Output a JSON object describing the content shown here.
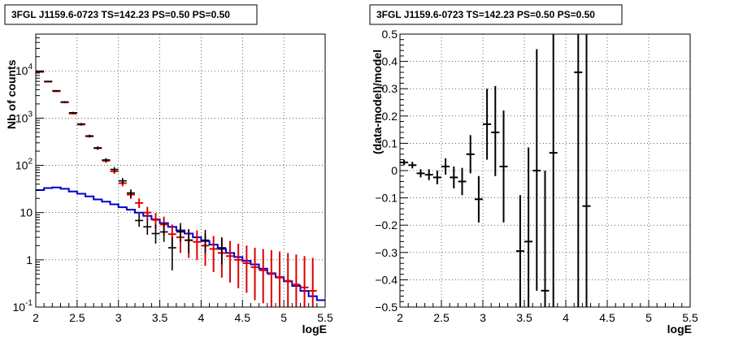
{
  "colors": {
    "data": "#000000",
    "model_points": "#dd0000",
    "source_curve": "#0000cc"
  },
  "chart_data": [
    {
      "type": "line",
      "title": "3FGL J1159.6-0723 TS=142.23 PS=0.50 PS=0.50",
      "xlabel": "logE",
      "ylabel": "Nb of counts",
      "xlim": [
        2,
        5.5
      ],
      "ylim": [
        0.1,
        60000
      ],
      "y_scale": "log",
      "grid": true,
      "x_tick_labels": [
        "2",
        "2.5",
        "3",
        "3.5",
        "4",
        "4.5",
        "5",
        "5.5"
      ],
      "y_tick_labels": [
        {
          "value": 0.1,
          "base": "10",
          "exp": "-1"
        },
        {
          "value": 1,
          "base": "1",
          "exp": ""
        },
        {
          "value": 10,
          "base": "10",
          "exp": ""
        },
        {
          "value": 100,
          "base": "10",
          "exp": "2"
        },
        {
          "value": 1000,
          "base": "10",
          "exp": "3"
        },
        {
          "value": 10000,
          "base": "10",
          "exp": "4"
        }
      ],
      "series": [
        {
          "role": "data",
          "style": "errorbar",
          "color": "#000000",
          "points": [
            {
              "x": 2.05,
              "y": 9700,
              "lo": 9500,
              "hi": 9900
            },
            {
              "x": 2.15,
              "y": 6000,
              "lo": 5850,
              "hi": 6150
            },
            {
              "x": 2.25,
              "y": 3800,
              "lo": 3680,
              "hi": 3920
            },
            {
              "x": 2.35,
              "y": 2200,
              "lo": 2110,
              "hi": 2290
            },
            {
              "x": 2.45,
              "y": 1300,
              "lo": 1240,
              "hi": 1360
            },
            {
              "x": 2.55,
              "y": 750,
              "lo": 710,
              "hi": 790
            },
            {
              "x": 2.65,
              "y": 420,
              "lo": 395,
              "hi": 445
            },
            {
              "x": 2.75,
              "y": 235,
              "lo": 218,
              "hi": 252
            },
            {
              "x": 2.85,
              "y": 130,
              "lo": 118,
              "hi": 142
            },
            {
              "x": 2.95,
              "y": 82,
              "lo": 72,
              "hi": 92
            },
            {
              "x": 3.05,
              "y": 47,
              "lo": 40,
              "hi": 54
            },
            {
              "x": 3.15,
              "y": 26,
              "lo": 21,
              "hi": 31
            },
            {
              "x": 3.25,
              "y": 6.8,
              "lo": 5,
              "hi": 9.5
            },
            {
              "x": 3.35,
              "y": 5,
              "lo": 3.4,
              "hi": 7.2
            },
            {
              "x": 3.45,
              "y": 3.6,
              "lo": 2.2,
              "hi": 5.6
            },
            {
              "x": 3.55,
              "y": 3.9,
              "lo": 2.4,
              "hi": 6
            },
            {
              "x": 3.65,
              "y": 1.8,
              "lo": 0.6,
              "hi": 3
            },
            {
              "x": 3.75,
              "y": 3.9,
              "lo": 2.4,
              "hi": 6
            },
            {
              "x": 3.85,
              "y": 2.6,
              "lo": 1.4,
              "hi": 4.3
            },
            {
              "x": 4.05,
              "y": 2.6,
              "lo": 1.4,
              "hi": 4.3
            },
            {
              "x": 4.25,
              "y": 1.8,
              "lo": 0.8,
              "hi": 3
            }
          ]
        },
        {
          "role": "model",
          "style": "errorbar",
          "color": "#dd0000",
          "points": [
            {
              "x": 2.05,
              "y": 9500,
              "lo": 9300,
              "hi": 9700
            },
            {
              "x": 2.15,
              "y": 5900,
              "lo": 5750,
              "hi": 6050
            },
            {
              "x": 2.25,
              "y": 3700,
              "lo": 3580,
              "hi": 3820
            },
            {
              "x": 2.35,
              "y": 2150,
              "lo": 2060,
              "hi": 2240
            },
            {
              "x": 2.45,
              "y": 1250,
              "lo": 1190,
              "hi": 1310
            },
            {
              "x": 2.55,
              "y": 730,
              "lo": 690,
              "hi": 770
            },
            {
              "x": 2.65,
              "y": 410,
              "lo": 385,
              "hi": 435
            },
            {
              "x": 2.75,
              "y": 230,
              "lo": 213,
              "hi": 247
            },
            {
              "x": 2.85,
              "y": 125,
              "lo": 113,
              "hi": 137
            },
            {
              "x": 2.95,
              "y": 75,
              "lo": 66,
              "hi": 84
            },
            {
              "x": 3.05,
              "y": 42,
              "lo": 36,
              "hi": 48
            },
            {
              "x": 3.15,
              "y": 24,
              "lo": 19.5,
              "hi": 28.5
            },
            {
              "x": 3.25,
              "y": 16,
              "lo": 12.5,
              "hi": 20
            },
            {
              "x": 3.35,
              "y": 10,
              "lo": 7.2,
              "hi": 13.2
            },
            {
              "x": 3.45,
              "y": 7,
              "lo": 4.6,
              "hi": 9.8
            },
            {
              "x": 3.55,
              "y": 5.6,
              "lo": 3.4,
              "hi": 8.2
            },
            {
              "x": 3.65,
              "y": 3.5,
              "lo": 1.8,
              "hi": 5.6
            },
            {
              "x": 3.75,
              "y": 3,
              "lo": 1.4,
              "hi": 5
            },
            {
              "x": 3.85,
              "y": 2.6,
              "lo": 1.1,
              "hi": 4.5
            },
            {
              "x": 3.95,
              "y": 2.4,
              "lo": 1,
              "hi": 4.2
            },
            {
              "x": 4.05,
              "y": 2,
              "lo": 0.75,
              "hi": 3.6
            },
            {
              "x": 4.15,
              "y": 1.7,
              "lo": 0.55,
              "hi": 3.2
            },
            {
              "x": 4.25,
              "y": 1.4,
              "lo": 0.42,
              "hi": 2.8
            },
            {
              "x": 4.35,
              "y": 1.2,
              "lo": 0.33,
              "hi": 2.5
            },
            {
              "x": 4.45,
              "y": 1,
              "lo": 0.25,
              "hi": 2.2
            },
            {
              "x": 4.55,
              "y": 0.85,
              "lo": 0.2,
              "hi": 2
            },
            {
              "x": 4.65,
              "y": 0.7,
              "lo": 0.14,
              "hi": 1.8
            },
            {
              "x": 4.75,
              "y": 0.6,
              "lo": 0.12,
              "hi": 1.7
            },
            {
              "x": 4.85,
              "y": 0.5,
              "lo": 0.1,
              "hi": 1.6
            },
            {
              "x": 4.95,
              "y": 0.42,
              "lo": 0.1,
              "hi": 1.5
            },
            {
              "x": 5.05,
              "y": 0.36,
              "lo": 0.1,
              "hi": 1.4
            },
            {
              "x": 5.15,
              "y": 0.3,
              "lo": 0.1,
              "hi": 1.3
            },
            {
              "x": 5.25,
              "y": 0.26,
              "lo": 0.1,
              "hi": 1.2
            },
            {
              "x": 5.35,
              "y": 0.22,
              "lo": 0.1,
              "hi": 1.1
            }
          ]
        },
        {
          "role": "source",
          "style": "step",
          "color": "#0000cc",
          "bin_width": 0.1,
          "x": [
            2.0,
            2.1,
            2.2,
            2.3,
            2.4,
            2.5,
            2.6,
            2.7,
            2.8,
            2.9,
            3.0,
            3.1,
            3.2,
            3.3,
            3.4,
            3.5,
            3.6,
            3.7,
            3.8,
            3.9,
            4.0,
            4.1,
            4.2,
            4.3,
            4.4,
            4.5,
            4.6,
            4.7,
            4.8,
            4.9,
            5.0,
            5.1,
            5.2,
            5.3,
            5.4
          ],
          "values": [
            30,
            33,
            34,
            32,
            28,
            25,
            22,
            19,
            17,
            15,
            13,
            11.5,
            10,
            8.5,
            7.2,
            6,
            5,
            4.2,
            3.6,
            3,
            2.5,
            2.1,
            1.7,
            1.4,
            1.15,
            0.95,
            0.8,
            0.65,
            0.52,
            0.43,
            0.35,
            0.28,
            0.22,
            0.17,
            0.14
          ]
        }
      ]
    },
    {
      "type": "scatter",
      "title": "3FGL J1159.6-0723 TS=142.23 PS=0.50 PS=0.50",
      "xlabel": "logE",
      "ylabel": "(data-model)/model",
      "xlim": [
        2,
        5.5
      ],
      "ylim": [
        -0.5,
        0.5
      ],
      "grid": true,
      "x_tick_labels": [
        "2",
        "2.5",
        "3",
        "3.5",
        "4",
        "4.5",
        "5",
        "5.5"
      ],
      "y_tick_labels": [
        "−0.5",
        "−0.4",
        "−0.3",
        "−0.2",
        "−0.1",
        "0",
        "0.1",
        "0.2",
        "0.3",
        "0.4",
        "0.5"
      ],
      "y_tick_values": [
        -0.5,
        -0.4,
        -0.3,
        -0.2,
        -0.1,
        0,
        0.1,
        0.2,
        0.3,
        0.4,
        0.5
      ],
      "series": [
        {
          "role": "residuals",
          "style": "errorbar",
          "color": "#000000",
          "points": [
            {
              "x": 2.05,
              "y": 0.03,
              "lo": 0.02,
              "hi": 0.04
            },
            {
              "x": 2.15,
              "y": 0.02,
              "lo": 0.008,
              "hi": 0.032
            },
            {
              "x": 2.25,
              "y": -0.01,
              "lo": -0.025,
              "hi": 0.005
            },
            {
              "x": 2.35,
              "y": -0.015,
              "lo": -0.035,
              "hi": 0.005
            },
            {
              "x": 2.45,
              "y": -0.025,
              "lo": -0.05,
              "hi": 0
            },
            {
              "x": 2.55,
              "y": 0.015,
              "lo": -0.015,
              "hi": 0.045
            },
            {
              "x": 2.65,
              "y": -0.025,
              "lo": -0.065,
              "hi": 0.015
            },
            {
              "x": 2.75,
              "y": -0.04,
              "lo": -0.09,
              "hi": 0.01
            },
            {
              "x": 2.85,
              "y": 0.06,
              "lo": -0.01,
              "hi": 0.13
            },
            {
              "x": 2.95,
              "y": -0.105,
              "lo": -0.19,
              "hi": -0.02
            },
            {
              "x": 3.05,
              "y": 0.17,
              "lo": 0.04,
              "hi": 0.3
            },
            {
              "x": 3.15,
              "y": 0.14,
              "lo": -0.02,
              "hi": 0.31
            },
            {
              "x": 3.25,
              "y": 0.015,
              "lo": -0.19,
              "hi": 0.22
            },
            {
              "x": 3.45,
              "y": -0.295,
              "lo": -0.5,
              "hi": -0.09
            },
            {
              "x": 3.55,
              "y": -0.26,
              "lo": -0.5,
              "hi": 0.085
            },
            {
              "x": 3.65,
              "y": 0,
              "lo": -0.44,
              "hi": 0.445
            },
            {
              "x": 3.75,
              "y": -0.44,
              "lo": -0.5,
              "hi": 0.0
            },
            {
              "x": 3.85,
              "y": 0.065,
              "lo": -0.5,
              "hi": 0.5
            },
            {
              "x": 4.15,
              "y": 0.36,
              "lo": -0.5,
              "hi": 0.5
            },
            {
              "x": 4.25,
              "y": -0.13,
              "lo": -0.5,
              "hi": 0.5
            }
          ]
        }
      ]
    }
  ]
}
